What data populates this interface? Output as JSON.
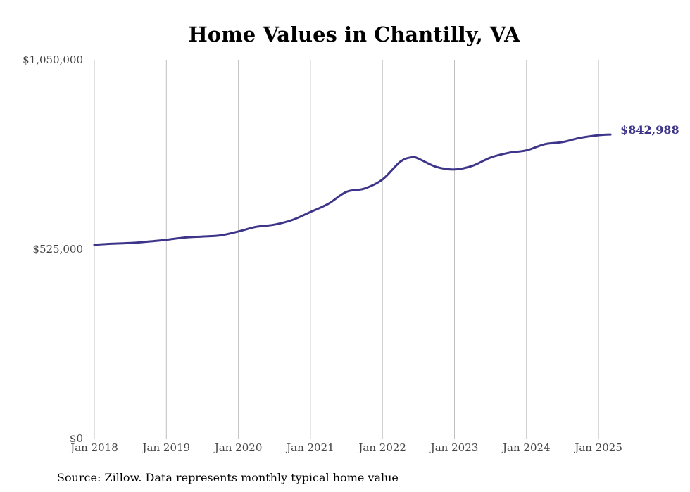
{
  "colors": {
    "line": "#3d3589",
    "grid": "#bfbfbf",
    "text": "#444444"
  },
  "chart_data": {
    "type": "line",
    "title": "Home Values in Chantilly, VA",
    "xlabel": "",
    "ylabel": "",
    "grid": "vertical",
    "ylim": [
      0,
      1050000
    ],
    "xlim": [
      "2018-01",
      "2025-03"
    ],
    "y_ticks": [
      {
        "value": 1050000,
        "label": "$1,050,000"
      },
      {
        "value": 525000,
        "label": "$525,000"
      },
      {
        "value": 0,
        "label": "$0"
      }
    ],
    "x_ticks": [
      {
        "x": "2018-01",
        "label": "Jan 2018"
      },
      {
        "x": "2019-01",
        "label": "Jan 2019"
      },
      {
        "x": "2020-01",
        "label": "Jan 2020"
      },
      {
        "x": "2021-01",
        "label": "Jan 2021"
      },
      {
        "x": "2022-01",
        "label": "Jan 2022"
      },
      {
        "x": "2023-01",
        "label": "Jan 2023"
      },
      {
        "x": "2024-01",
        "label": "Jan 2024"
      },
      {
        "x": "2025-01",
        "label": "Jan 2025"
      }
    ],
    "series": [
      {
        "points": [
          {
            "x": "2018-01",
            "y": 537000
          },
          {
            "x": "2018-04",
            "y": 540000
          },
          {
            "x": "2018-07",
            "y": 542000
          },
          {
            "x": "2018-10",
            "y": 546000
          },
          {
            "x": "2019-01",
            "y": 551000
          },
          {
            "x": "2019-04",
            "y": 557000
          },
          {
            "x": "2019-07",
            "y": 560000
          },
          {
            "x": "2019-10",
            "y": 563000
          },
          {
            "x": "2020-01",
            "y": 574000
          },
          {
            "x": "2020-04",
            "y": 587000
          },
          {
            "x": "2020-07",
            "y": 593000
          },
          {
            "x": "2020-10",
            "y": 606000
          },
          {
            "x": "2021-01",
            "y": 628000
          },
          {
            "x": "2021-04",
            "y": 651000
          },
          {
            "x": "2021-07",
            "y": 684000
          },
          {
            "x": "2021-10",
            "y": 693000
          },
          {
            "x": "2022-01",
            "y": 718000
          },
          {
            "x": "2022-04",
            "y": 768000
          },
          {
            "x": "2022-06",
            "y": 780000
          },
          {
            "x": "2022-07",
            "y": 776000
          },
          {
            "x": "2022-10",
            "y": 753000
          },
          {
            "x": "2023-01",
            "y": 746000
          },
          {
            "x": "2023-04",
            "y": 756000
          },
          {
            "x": "2023-07",
            "y": 779000
          },
          {
            "x": "2023-10",
            "y": 792000
          },
          {
            "x": "2024-01",
            "y": 799000
          },
          {
            "x": "2024-04",
            "y": 816000
          },
          {
            "x": "2024-07",
            "y": 822000
          },
          {
            "x": "2024-10",
            "y": 834000
          },
          {
            "x": "2025-01",
            "y": 841000
          },
          {
            "x": "2025-03",
            "y": 842988
          }
        ],
        "end_label": "$842,988"
      }
    ],
    "source": "Source: Zillow. Data represents monthly typical home value"
  }
}
